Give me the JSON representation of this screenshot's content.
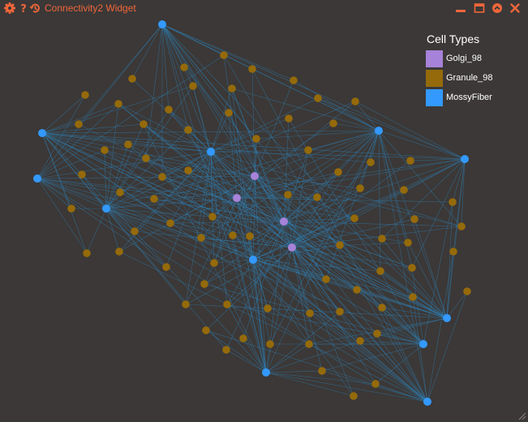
{
  "window": {
    "title": "Connectivity2 Widget",
    "accent_color": "#f0663a",
    "background_color": "#3b3837",
    "icons": {
      "settings": "gear-icon",
      "help": "help-icon",
      "history": "history-icon",
      "minimize": "minimize-icon",
      "maximize": "maximize-icon",
      "collapse": "collapse-icon",
      "close": "close-icon"
    }
  },
  "legend": {
    "title": "Cell Types",
    "items": [
      {
        "label": "Golgi_98",
        "color": "#a682d8"
      },
      {
        "label": "Granule_98",
        "color": "#956a0a"
      },
      {
        "label": "MossyFiber",
        "color": "#3399ff"
      }
    ]
  },
  "graph": {
    "edge_color": "#2e86c1",
    "node_types": [
      "Golgi_98",
      "Granule_98",
      "MossyFiber"
    ]
  }
}
